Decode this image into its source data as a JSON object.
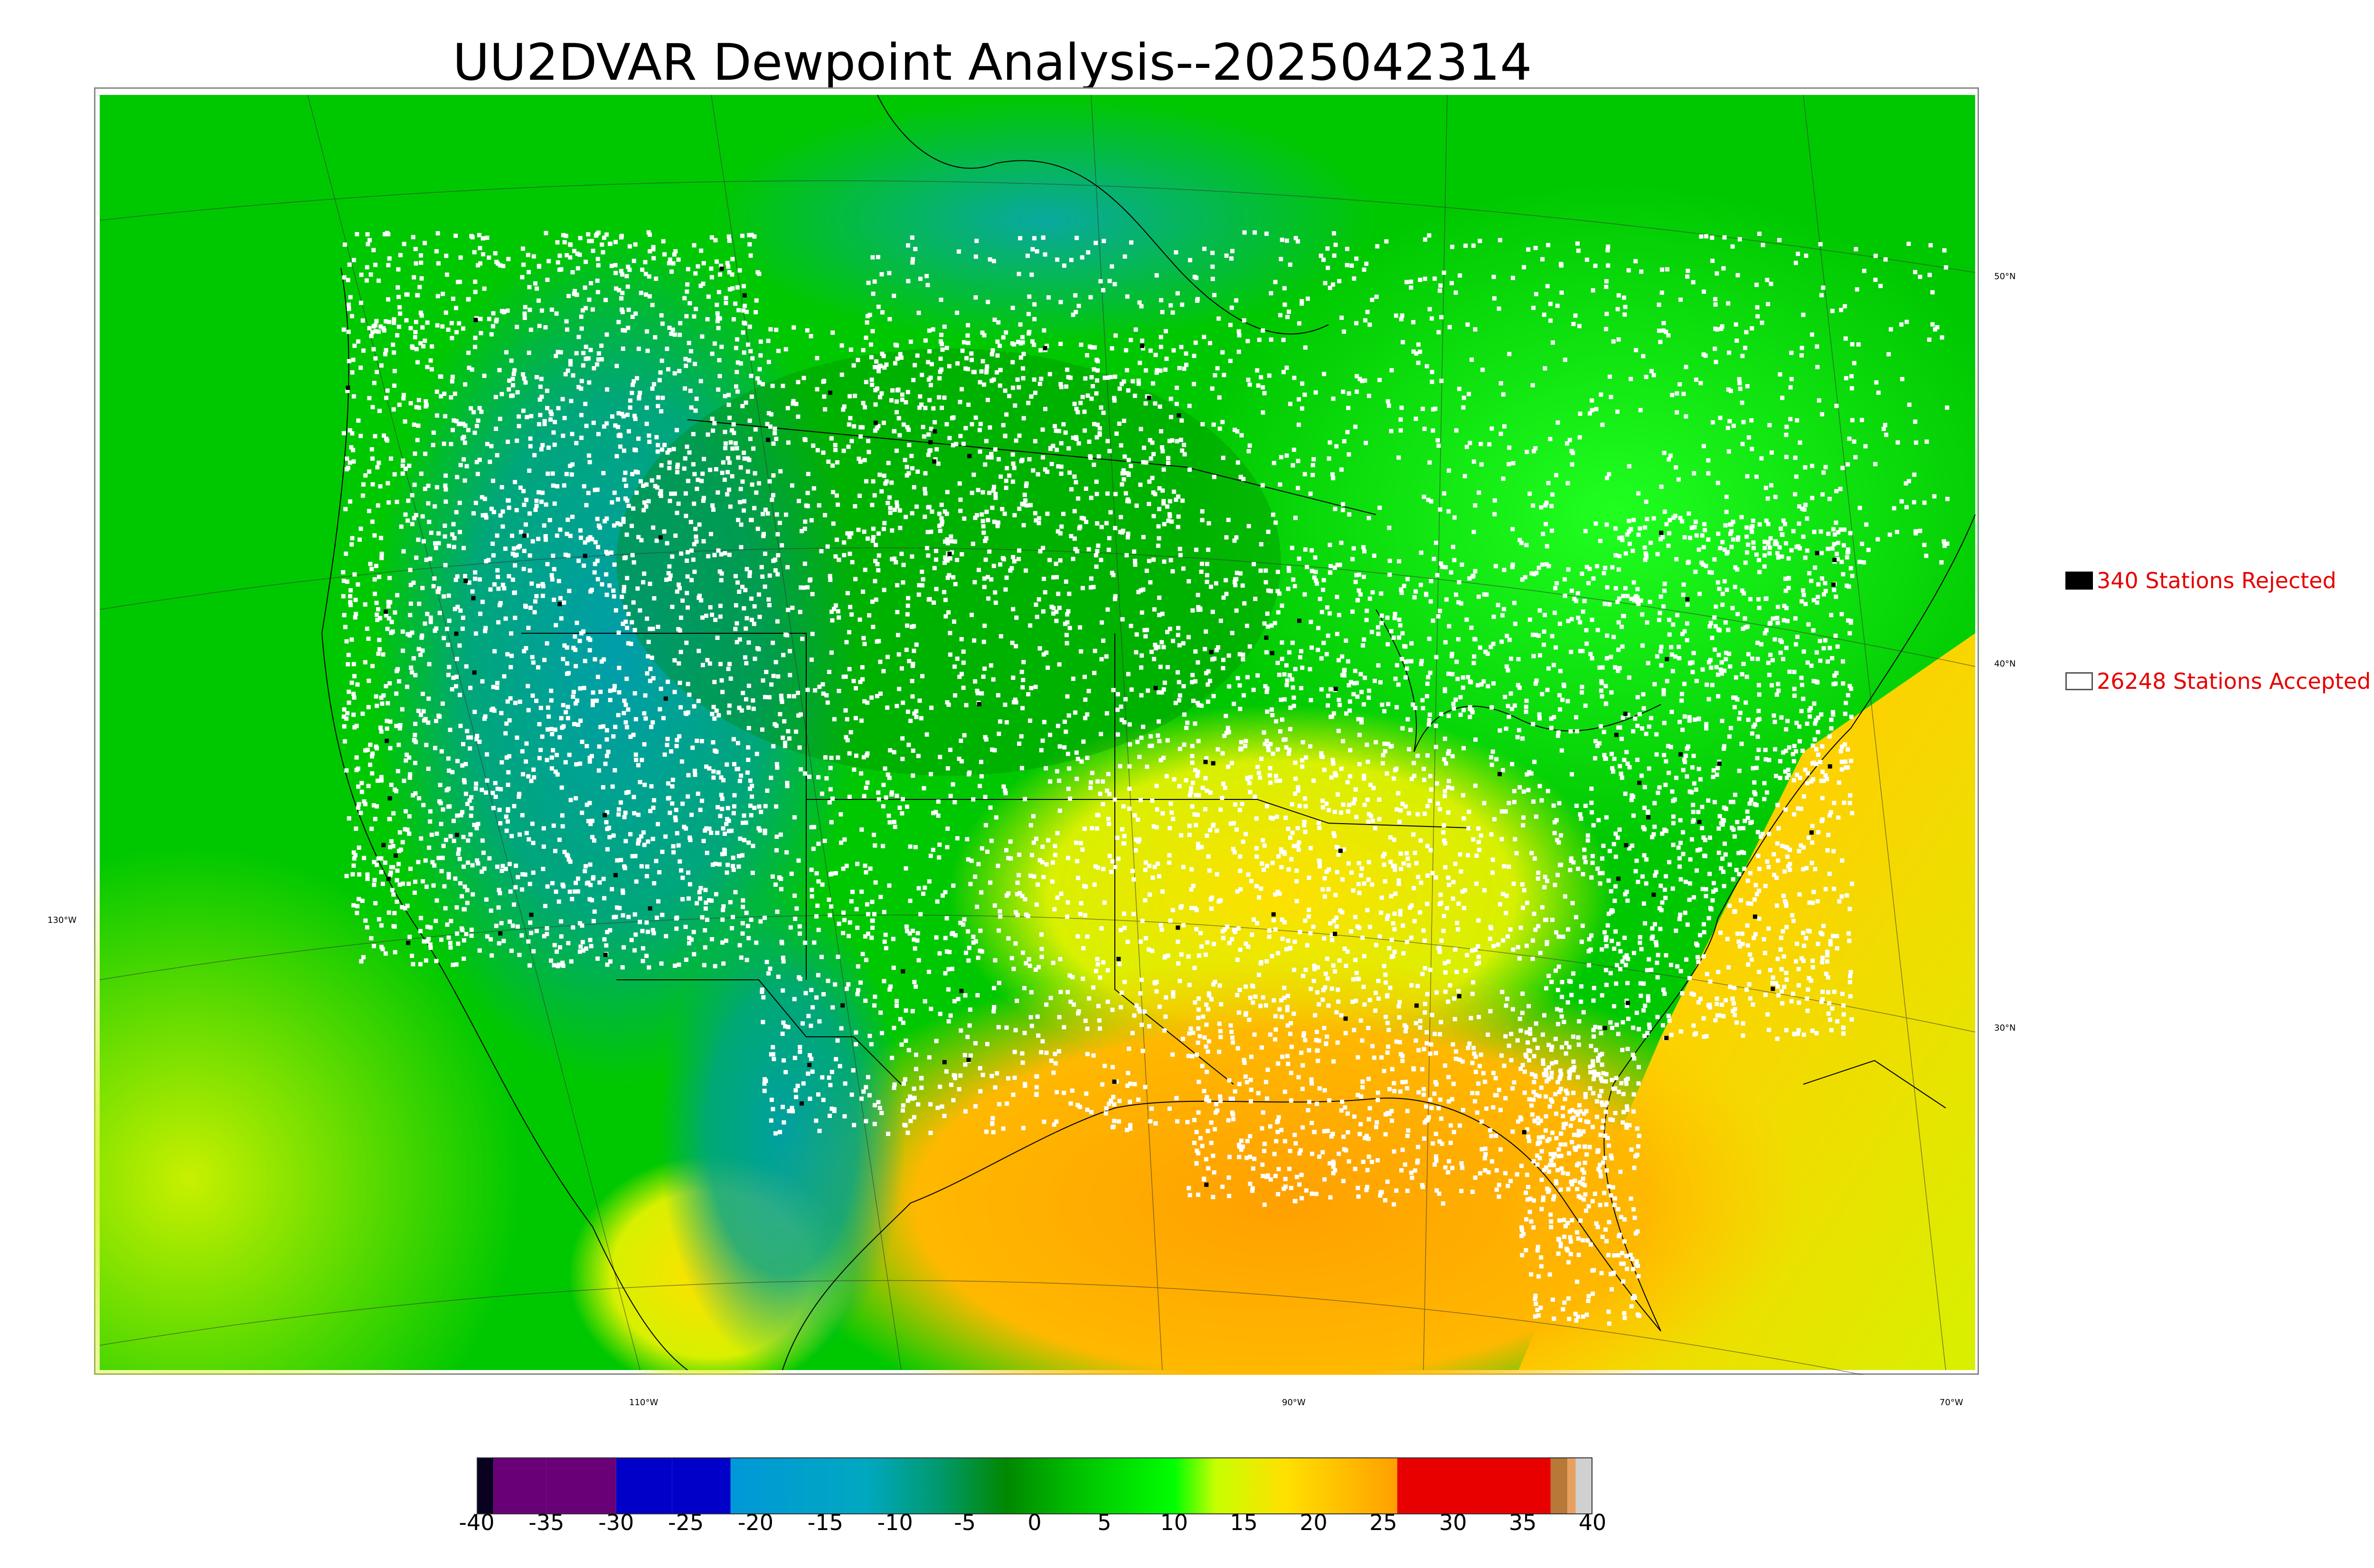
{
  "title": "UU2DVAR Dewpoint Analysis--2025042314",
  "map": {
    "latitude_labels": [
      "50°N",
      "40°N",
      "30°N"
    ],
    "longitude_labels": [
      "130°W",
      "110°W",
      "90°W",
      "70°W"
    ]
  },
  "legend": {
    "rejected": {
      "label": "340 Stations Rejected",
      "swatch_color": "#000000"
    },
    "accepted": {
      "label": "26248 Stations Accepted",
      "swatch_color": "#ffffff"
    }
  },
  "colorbar": {
    "ticks": [
      "-40",
      "-35",
      "-30",
      "-25",
      "-20",
      "-15",
      "-10",
      "-5",
      "0",
      "5",
      "10",
      "15",
      "20",
      "25",
      "30",
      "35",
      "40"
    ],
    "range": [
      -40,
      40
    ],
    "segments": [
      {
        "from": -40,
        "to": -38.8,
        "color": "#0a0020"
      },
      {
        "from": -38.8,
        "to": -35,
        "color": "#6a0078"
      },
      {
        "from": -35,
        "to": -30,
        "color": "#6a0078"
      },
      {
        "from": -30,
        "to": -26,
        "color": "#0000c8"
      },
      {
        "from": -26,
        "to": -21.8,
        "color": "#0000c8"
      },
      {
        "from": -21.8,
        "to": -15,
        "color": "#0096d8"
      },
      {
        "from": -15,
        "to": -10,
        "color": "#00a0c0"
      },
      {
        "from": -10,
        "to": -5,
        "color": "#009a80"
      },
      {
        "from": -5,
        "to": 0,
        "color": "#008a00"
      },
      {
        "from": 0,
        "to": 5,
        "color": "#00c800"
      },
      {
        "from": 5,
        "to": 10,
        "color": "#00ff00"
      },
      {
        "from": 10,
        "to": 15,
        "color": "#c8ff00"
      },
      {
        "from": 15,
        "to": 20,
        "color": "#ffe000"
      },
      {
        "from": 20,
        "to": 26,
        "color": "#ffa000"
      },
      {
        "from": 26,
        "to": 37,
        "color": "#e80000"
      },
      {
        "from": 37,
        "to": 38.2,
        "color": "#b87838"
      },
      {
        "from": 38.2,
        "to": 38.8,
        "color": "#e8a060"
      },
      {
        "from": 38.8,
        "to": 40,
        "color": "#d0d0d0"
      }
    ]
  }
}
